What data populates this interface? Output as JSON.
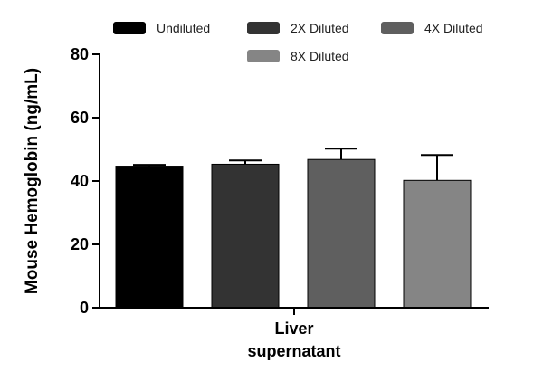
{
  "chart_data": {
    "type": "bar",
    "title": "",
    "xlabel": "",
    "ylabel": "Mouse Hemoglobin (ng/mL)",
    "ylim": [
      0,
      80
    ],
    "yticks": [
      0,
      20,
      40,
      60,
      80
    ],
    "category_label_lines": [
      "Liver",
      "supernatant"
    ],
    "legend_placement": "top",
    "series": [
      {
        "name": "Undiluted",
        "value": 44.7,
        "error": 0.4,
        "color": "#000000"
      },
      {
        "name": "2X Diluted",
        "value": 45.3,
        "error": 1.2,
        "color": "#333333"
      },
      {
        "name": "4X Diluted",
        "value": 46.8,
        "error": 3.4,
        "color": "#5f5f5f"
      },
      {
        "name": "8X Diluted",
        "value": 40.2,
        "error": 8.0,
        "color": "#858585"
      }
    ]
  }
}
